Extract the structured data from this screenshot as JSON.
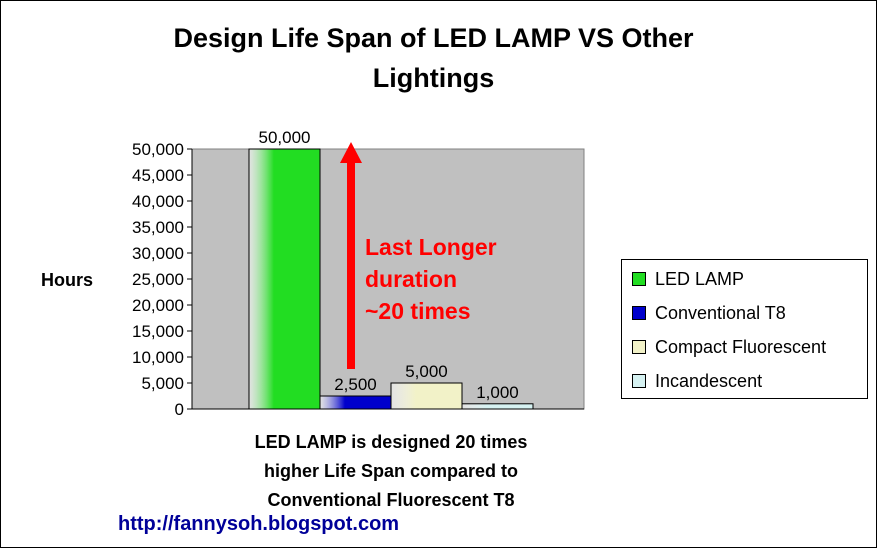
{
  "title_lines": [
    "Design Life Span of  LED LAMP VS Other",
    "Lightings"
  ],
  "chart_data": {
    "type": "bar",
    "ylabel": "Hours",
    "ylim": [
      0,
      50000
    ],
    "yticks": [
      0,
      5000,
      10000,
      15000,
      20000,
      25000,
      30000,
      35000,
      40000,
      45000,
      50000
    ],
    "ytick_labels": [
      "0",
      "5,000",
      "10,000",
      "15,000",
      "20,000",
      "25,000",
      "30,000",
      "35,000",
      "40,000",
      "45,000",
      "50,000"
    ],
    "series": [
      {
        "name": "LED LAMP",
        "value": 50000,
        "label": "50,000",
        "color": "#22dd22"
      },
      {
        "name": "Conventional T8",
        "value": 2500,
        "label": "2,500",
        "color": "#0000cc"
      },
      {
        "name": "Compact Fluorescent",
        "value": 5000,
        "label": "5,000",
        "color": "#f2f2c8"
      },
      {
        "name": "Incandescent",
        "value": 1000,
        "label": "1,000",
        "color": "#d6f2f2"
      }
    ],
    "legend_position": "right",
    "plot_background": "#c0c0c0",
    "grid": false
  },
  "annotation": {
    "lines": [
      "Last Longer",
      "duration",
      "~20 times"
    ],
    "color": "#ff0000"
  },
  "footnote_lines": [
    "LED LAMP is designed  20 times",
    "higher Life Span compared to",
    "Conventional Fluorescent T8"
  ],
  "url": "http://fannysoh.blogspot.com"
}
